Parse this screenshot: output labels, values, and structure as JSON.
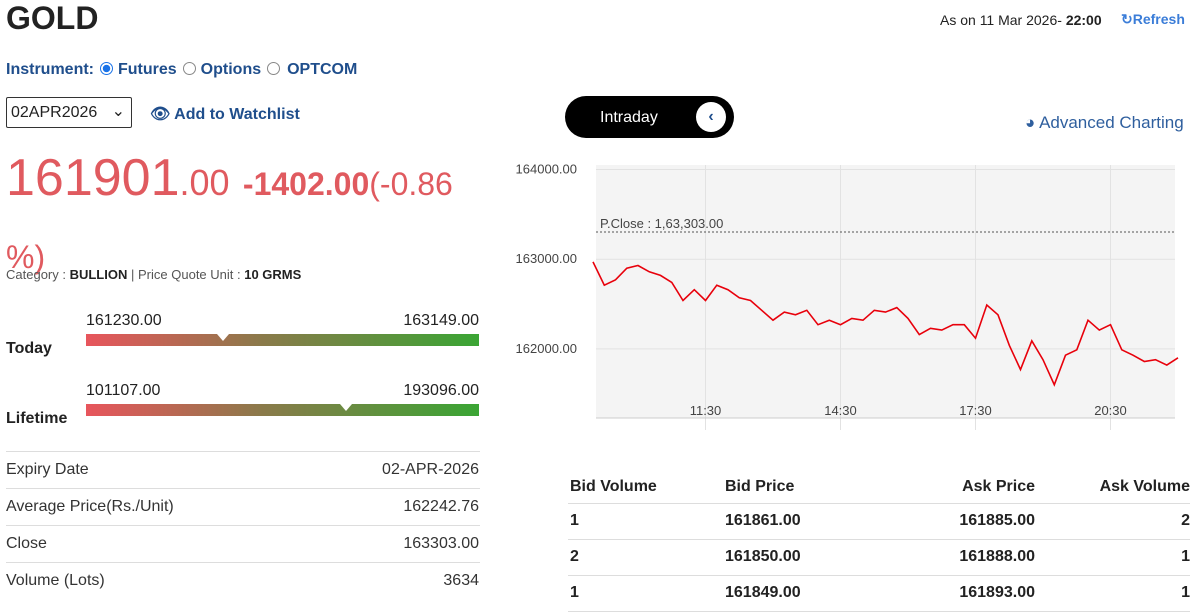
{
  "header": {
    "title": "GOLD",
    "as_on": "As on 11 Mar 2026- ",
    "time": "22:00",
    "refresh": "Refresh"
  },
  "instrument": {
    "label": "Instrument:",
    "options": [
      "Futures",
      "Options",
      "OPTCOM"
    ],
    "selected": 0
  },
  "expiry_select": "02APR2026",
  "watchlist": "Add to Watchlist",
  "quote": {
    "ltp": "161901.00",
    "change": "-1402.00",
    "change_pct": "(-0.86 %)"
  },
  "category": {
    "label": "Category : ",
    "value": "BULLION",
    "sep": "|",
    "unit_label": "Price Quote Unit : ",
    "unit": "10 GRMS"
  },
  "ranges": [
    {
      "name": "Today",
      "low": {
        "value": 161230,
        "label": "161230.00"
      },
      "high": {
        "value": 163149,
        "label": "163149.00"
      }
    },
    {
      "name": "Lifetime",
      "low": {
        "value": 101107,
        "label": "101107.00"
      },
      "high": {
        "value": 193096,
        "label": "193096.00"
      }
    }
  ],
  "details": [
    [
      "Expiry Date",
      "02-APR-2026"
    ],
    [
      "Average Price(Rs./Unit)",
      "162242.76"
    ],
    [
      "Close",
      "163303.00"
    ],
    [
      "Volume (Lots)",
      "3634"
    ]
  ],
  "toggle": "Intraday",
  "advanced": "Advanced Charting",
  "chart_data": {
    "type": "line",
    "color": "#e8000b",
    "grid": true,
    "x": [
      "09:00",
      "09:15",
      "09:30",
      "09:45",
      "10:00",
      "10:15",
      "10:30",
      "10:45",
      "11:00",
      "11:15",
      "11:30",
      "11:45",
      "12:00",
      "12:15",
      "12:30",
      "12:45",
      "13:00",
      "13:15",
      "13:30",
      "13:45",
      "14:00",
      "14:15",
      "14:30",
      "14:45",
      "15:00",
      "15:15",
      "15:30",
      "15:45",
      "16:00",
      "16:15",
      "16:30",
      "16:45",
      "17:00",
      "17:15",
      "17:30",
      "17:45",
      "18:00",
      "18:15",
      "18:30",
      "18:45",
      "19:00",
      "19:15",
      "19:30",
      "19:45",
      "20:00",
      "20:15",
      "20:30",
      "20:45",
      "21:00",
      "21:15",
      "21:30",
      "21:45",
      "22:00"
    ],
    "values": [
      162970,
      162710,
      162770,
      162900,
      162930,
      162860,
      162820,
      162740,
      162540,
      162660,
      162540,
      162710,
      162660,
      162570,
      162540,
      162430,
      162320,
      162410,
      162380,
      162430,
      162270,
      162320,
      162270,
      162340,
      162320,
      162430,
      162410,
      162460,
      162340,
      162160,
      162230,
      162210,
      162270,
      162270,
      162120,
      162490,
      162380,
      162040,
      161770,
      162090,
      161880,
      161600,
      161930,
      161990,
      162320,
      162210,
      162270,
      161990,
      161930,
      161860,
      161880,
      161820,
      161901
    ],
    "xlim": [
      "09:00",
      "22:00"
    ],
    "xticks": [
      "11:30",
      "14:30",
      "17:30",
      "20:30"
    ],
    "ylim": [
      161230,
      164050
    ],
    "yticks": [
      {
        "value": 164000,
        "label": "164000.00"
      },
      {
        "value": 163000,
        "label": "163000.00"
      },
      {
        "value": 162000,
        "label": "162000.00"
      }
    ],
    "annotation": {
      "label": "P.Close : 1,63,303.00",
      "value": 163303
    }
  },
  "order_book": {
    "columns": [
      "Bid Volume",
      "Bid Price",
      "Ask Price",
      "Ask Volume"
    ],
    "rows": [
      [
        "1",
        "161861.00",
        "161885.00",
        "2"
      ],
      [
        "2",
        "161850.00",
        "161888.00",
        "1"
      ],
      [
        "1",
        "161849.00",
        "161893.00",
        "1"
      ]
    ]
  }
}
